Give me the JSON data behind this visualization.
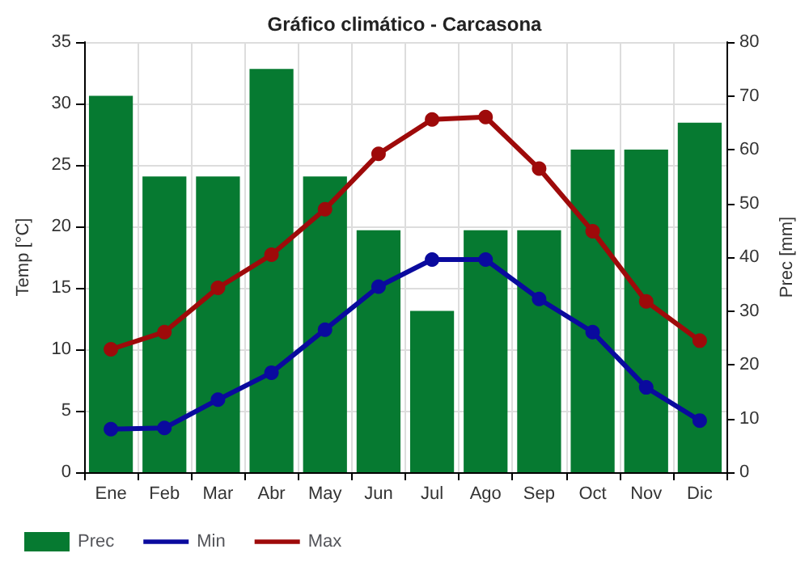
{
  "chart_data": {
    "type": "bar",
    "title": "Gráfico climático - Carcasona",
    "ylabel": "Temp [°C]",
    "y2label": "Prec [mm]",
    "categories": [
      "Ene",
      "Feb",
      "Mar",
      "Abr",
      "May",
      "Jun",
      "Jul",
      "Ago",
      "Sep",
      "Oct",
      "Nov",
      "Dic"
    ],
    "series": [
      {
        "name": "Prec",
        "axis": "y2",
        "color": "#067a31",
        "values": [
          70,
          55,
          55,
          75,
          55,
          45,
          30,
          45,
          45,
          60,
          60,
          65
        ]
      },
      {
        "name": "Min",
        "type": "line",
        "color": "#0a0a9e",
        "values": [
          3.5,
          3.6,
          5.9,
          8.1,
          11.6,
          15.1,
          17.3,
          17.3,
          14.1,
          11.4,
          6.9,
          4.2
        ]
      },
      {
        "name": "Max",
        "type": "line",
        "color": "#9e0a0a",
        "values": [
          10.0,
          11.4,
          15.0,
          17.7,
          21.4,
          25.9,
          28.7,
          28.9,
          24.7,
          19.6,
          13.9,
          10.7
        ]
      }
    ],
    "ylim": [
      0,
      35
    ],
    "yticks": [
      0,
      5,
      10,
      15,
      20,
      25,
      30,
      35
    ],
    "y2lim": [
      0,
      80
    ],
    "y2ticks": [
      0,
      10,
      20,
      30,
      40,
      50,
      60,
      70,
      80
    ],
    "grid": true,
    "legend": "bottom",
    "marker": "circle",
    "line_style": "solid"
  }
}
